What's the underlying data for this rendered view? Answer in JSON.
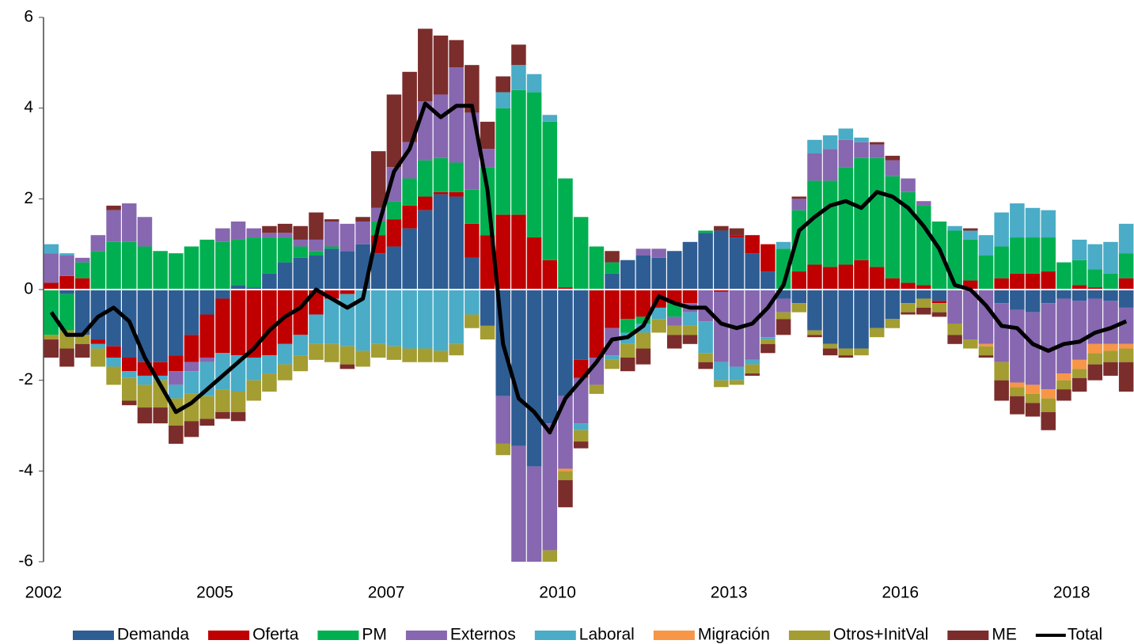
{
  "chart_data": {
    "type": "bar",
    "stacked": true,
    "categories": [
      "2002",
      null,
      null,
      null,
      null,
      null,
      null,
      null,
      null,
      null,
      null,
      "2005",
      null,
      null,
      null,
      null,
      null,
      null,
      null,
      null,
      null,
      null,
      "2007",
      null,
      null,
      null,
      null,
      null,
      null,
      null,
      null,
      null,
      null,
      "2010",
      null,
      null,
      null,
      null,
      null,
      null,
      null,
      null,
      null,
      null,
      "2013",
      null,
      null,
      null,
      null,
      null,
      null,
      null,
      null,
      null,
      null,
      "2016",
      null,
      null,
      null,
      null,
      null,
      null,
      null,
      null,
      null,
      null,
      "2018",
      null,
      null,
      null
    ],
    "ylim": [
      -6,
      6
    ],
    "yticks": [
      -6,
      -4,
      -2,
      0,
      2,
      4,
      6
    ],
    "series": [
      {
        "name": "Demanda",
        "color": "#2e5d94",
        "values": [
          0,
          -0.1,
          -1.0,
          -1.1,
          -1.25,
          -1.5,
          -1.6,
          -1.6,
          -1.45,
          -1.0,
          -0.55,
          -0.2,
          0.1,
          0.05,
          0.35,
          0.6,
          0.7,
          0.75,
          0.9,
          0.85,
          1.0,
          0.8,
          0.95,
          1.35,
          1.75,
          2.1,
          2.05,
          0.7,
          -0.8,
          -2.35,
          -3.45,
          -3.9,
          -2.95,
          -2.35,
          -1.55,
          0,
          0.35,
          0.65,
          0.75,
          0.7,
          0.85,
          1.05,
          1.25,
          1.3,
          1.15,
          0.8,
          0.4,
          -0.2,
          -0.3,
          -0.9,
          -1.2,
          -1.3,
          -1.3,
          -0.85,
          -0.65,
          -0.3,
          -0.2,
          -0.25,
          0,
          0,
          0,
          -0.3,
          -0.45,
          -0.5,
          -0.3,
          -0.2,
          -0.25,
          -0.2,
          -0.25,
          -0.4
        ]
      },
      {
        "name": "Oferta",
        "color": "#c00000",
        "values": [
          0.15,
          0.3,
          0.25,
          -0.1,
          -0.25,
          -0.3,
          -0.3,
          -0.3,
          -0.35,
          -0.6,
          -0.95,
          -1.2,
          -1.45,
          -1.5,
          -1.45,
          -1.2,
          -1.0,
          -0.55,
          -0.2,
          -0.1,
          0,
          0.4,
          0.6,
          0.5,
          0.3,
          0.05,
          0.1,
          0.75,
          1.2,
          1.65,
          1.65,
          1.15,
          0.65,
          0.05,
          -0.4,
          -1.5,
          -0.85,
          -0.65,
          -0.6,
          -0.4,
          -0.3,
          -0.3,
          0,
          -0.05,
          0.05,
          0.4,
          0.6,
          0,
          0.4,
          0.55,
          0.5,
          0.55,
          0.65,
          0.5,
          0.25,
          0.15,
          0.1,
          -0.05,
          0,
          0.2,
          0,
          0.25,
          0.35,
          0.35,
          0.4,
          0,
          0.1,
          0.05,
          0,
          0.25
        ]
      },
      {
        "name": "PM",
        "color": "#00b050",
        "values": [
          -1.0,
          -0.8,
          0.35,
          0.85,
          1.05,
          1.05,
          0.95,
          0.85,
          0.8,
          0.95,
          1.1,
          1.05,
          1.0,
          1.1,
          0.8,
          0.55,
          0.25,
          0.1,
          0.05,
          0,
          0,
          0.3,
          0.4,
          0.6,
          0.8,
          0.75,
          0.65,
          0.75,
          1.5,
          2.35,
          2.75,
          3.2,
          3.05,
          2.4,
          1.6,
          0.95,
          0.25,
          -0.3,
          -0.15,
          0,
          -0.3,
          0,
          0.05,
          0,
          0,
          0,
          0,
          0.9,
          1.35,
          1.85,
          1.9,
          2.15,
          2.25,
          2.4,
          2.25,
          2.0,
          1.75,
          1.5,
          1.3,
          0.9,
          0.75,
          0.7,
          0.8,
          0.8,
          0.75,
          0.6,
          0.55,
          0.4,
          0.35,
          0.55
        ]
      },
      {
        "name": "Externos",
        "color": "#8767b0",
        "values": [
          0.65,
          0.45,
          0.1,
          0.35,
          0.7,
          0.85,
          0.65,
          0,
          -0.3,
          -0.2,
          -0.1,
          0.3,
          0.4,
          0.2,
          0.1,
          0.1,
          0.15,
          0.25,
          0.55,
          0.6,
          0.5,
          0.3,
          0.75,
          0.8,
          1.3,
          1.4,
          2.1,
          1.7,
          0.4,
          -1.05,
          -2.55,
          -2.1,
          -2.8,
          -1.6,
          -1.0,
          -0.6,
          -0.6,
          0,
          0.15,
          0.2,
          -0.2,
          -0.2,
          -0.7,
          -1.55,
          -1.7,
          -1.55,
          -1.05,
          -0.3,
          0.25,
          0.6,
          0.7,
          0.6,
          0.35,
          0.3,
          0.35,
          0.3,
          0.1,
          0,
          -0.75,
          -1.1,
          -1.2,
          -1.3,
          -1.6,
          -1.6,
          -1.9,
          -1.65,
          -1.3,
          -1.0,
          -0.95,
          -0.8
        ]
      },
      {
        "name": "Laboral",
        "color": "#4aacc6",
        "values": [
          0.2,
          0.05,
          0,
          -0.1,
          -0.2,
          -0.15,
          -0.2,
          -0.1,
          -0.3,
          -0.5,
          -0.75,
          -0.8,
          -0.8,
          -0.5,
          -0.4,
          -0.45,
          -0.45,
          -0.65,
          -1.0,
          -1.15,
          -1.35,
          -1.2,
          -1.25,
          -1.3,
          -1.3,
          -1.35,
          -1.2,
          -0.55,
          0,
          0.35,
          0.55,
          0.4,
          0.15,
          0,
          -0.15,
          0,
          -0.1,
          -0.25,
          -0.2,
          -0.25,
          0,
          -0.3,
          -0.7,
          -0.4,
          -0.3,
          -0.1,
          -0.05,
          0.15,
          0,
          0.3,
          0.3,
          0.25,
          0.1,
          0,
          0,
          0,
          0,
          0,
          0.1,
          0.2,
          0.45,
          0.75,
          0.75,
          0.65,
          0.6,
          0,
          0.45,
          0.55,
          0.7,
          0.65
        ]
      },
      {
        "name": "Migración",
        "color": "#f79646",
        "values": [
          0,
          0,
          0,
          0,
          0,
          0,
          0,
          0,
          0,
          0,
          0,
          0,
          0,
          0,
          0,
          0,
          0,
          0,
          0,
          0,
          0,
          0,
          0,
          0,
          0,
          0,
          0,
          0,
          0,
          0,
          0,
          0,
          0,
          -0.05,
          0,
          0,
          0,
          0,
          0,
          0,
          0,
          0,
          0,
          0,
          0,
          0,
          0,
          0,
          0,
          0,
          0,
          0,
          0,
          0,
          0,
          0,
          0,
          0,
          0,
          0,
          -0.05,
          0,
          -0.1,
          -0.2,
          -0.2,
          -0.15,
          -0.2,
          -0.2,
          -0.15,
          -0.1
        ]
      },
      {
        "name": "Otros+InitVal",
        "color": "#a39d32",
        "values": [
          -0.1,
          -0.4,
          -0.2,
          -0.4,
          -0.4,
          -0.5,
          -0.5,
          -0.6,
          -0.6,
          -0.6,
          -0.5,
          -0.5,
          -0.45,
          -0.45,
          -0.4,
          -0.35,
          -0.35,
          -0.35,
          -0.4,
          -0.4,
          -0.35,
          -0.3,
          -0.3,
          -0.3,
          -0.3,
          -0.25,
          -0.25,
          -0.3,
          -0.3,
          -0.25,
          0,
          0,
          -0.25,
          -0.2,
          -0.25,
          -0.2,
          -0.2,
          -0.3,
          -0.35,
          -0.3,
          -0.2,
          -0.2,
          -0.2,
          -0.15,
          -0.1,
          -0.2,
          -0.1,
          -0.15,
          -0.2,
          -0.1,
          -0.1,
          -0.15,
          -0.15,
          -0.2,
          -0.2,
          -0.2,
          -0.2,
          -0.2,
          -0.25,
          -0.2,
          -0.2,
          -0.4,
          -0.2,
          -0.2,
          -0.3,
          -0.2,
          -0.2,
          -0.25,
          -0.25,
          -0.3
        ]
      },
      {
        "name": "ME",
        "color": "#7b2d2b",
        "values": [
          -0.4,
          -0.4,
          -0.3,
          0,
          0.1,
          -0.1,
          -0.35,
          -0.35,
          -0.4,
          -0.35,
          -0.15,
          -0.15,
          -0.2,
          0,
          0.15,
          0.2,
          0.3,
          0.6,
          0.05,
          -0.1,
          0.1,
          1.25,
          1.6,
          1.55,
          1.6,
          1.3,
          0.6,
          1.05,
          0.6,
          0.35,
          0.45,
          0,
          0,
          -0.6,
          -0.15,
          0,
          0.25,
          -0.3,
          -0.35,
          0,
          -0.3,
          -0.2,
          -0.15,
          0.1,
          0.15,
          -0.05,
          -0.2,
          -0.35,
          0.05,
          -0.05,
          -0.15,
          -0.05,
          0,
          0.05,
          0.1,
          -0.05,
          -0.15,
          -0.1,
          -0.2,
          0.05,
          -0.05,
          -0.45,
          -0.4,
          -0.3,
          -0.4,
          -0.25,
          -0.3,
          -0.35,
          -0.3,
          -0.65
        ]
      },
      {
        "name": "Total",
        "color": "#000000",
        "type": "line",
        "values": [
          -0.5,
          -1.0,
          -1.0,
          -0.6,
          -0.4,
          -0.7,
          -1.5,
          -2.1,
          -2.7,
          -2.5,
          -2.2,
          -1.9,
          -1.6,
          -1.3,
          -0.9,
          -0.6,
          -0.4,
          0.0,
          -0.2,
          -0.4,
          -0.2,
          1.4,
          2.6,
          3.1,
          4.1,
          3.8,
          4.05,
          4.05,
          2.2,
          -1.2,
          -2.4,
          -2.7,
          -3.15,
          -2.4,
          -2.0,
          -1.6,
          -1.1,
          -1.05,
          -0.8,
          -0.15,
          -0.3,
          -0.4,
          -0.4,
          -0.75,
          -0.85,
          -0.75,
          -0.4,
          0.1,
          1.3,
          1.6,
          1.85,
          1.95,
          1.8,
          2.15,
          2.05,
          1.8,
          1.4,
          0.9,
          0.1,
          0.0,
          -0.35,
          -0.8,
          -0.85,
          -1.2,
          -1.35,
          -1.2,
          -1.15,
          -0.95,
          -0.85,
          -0.7
        ]
      }
    ]
  }
}
